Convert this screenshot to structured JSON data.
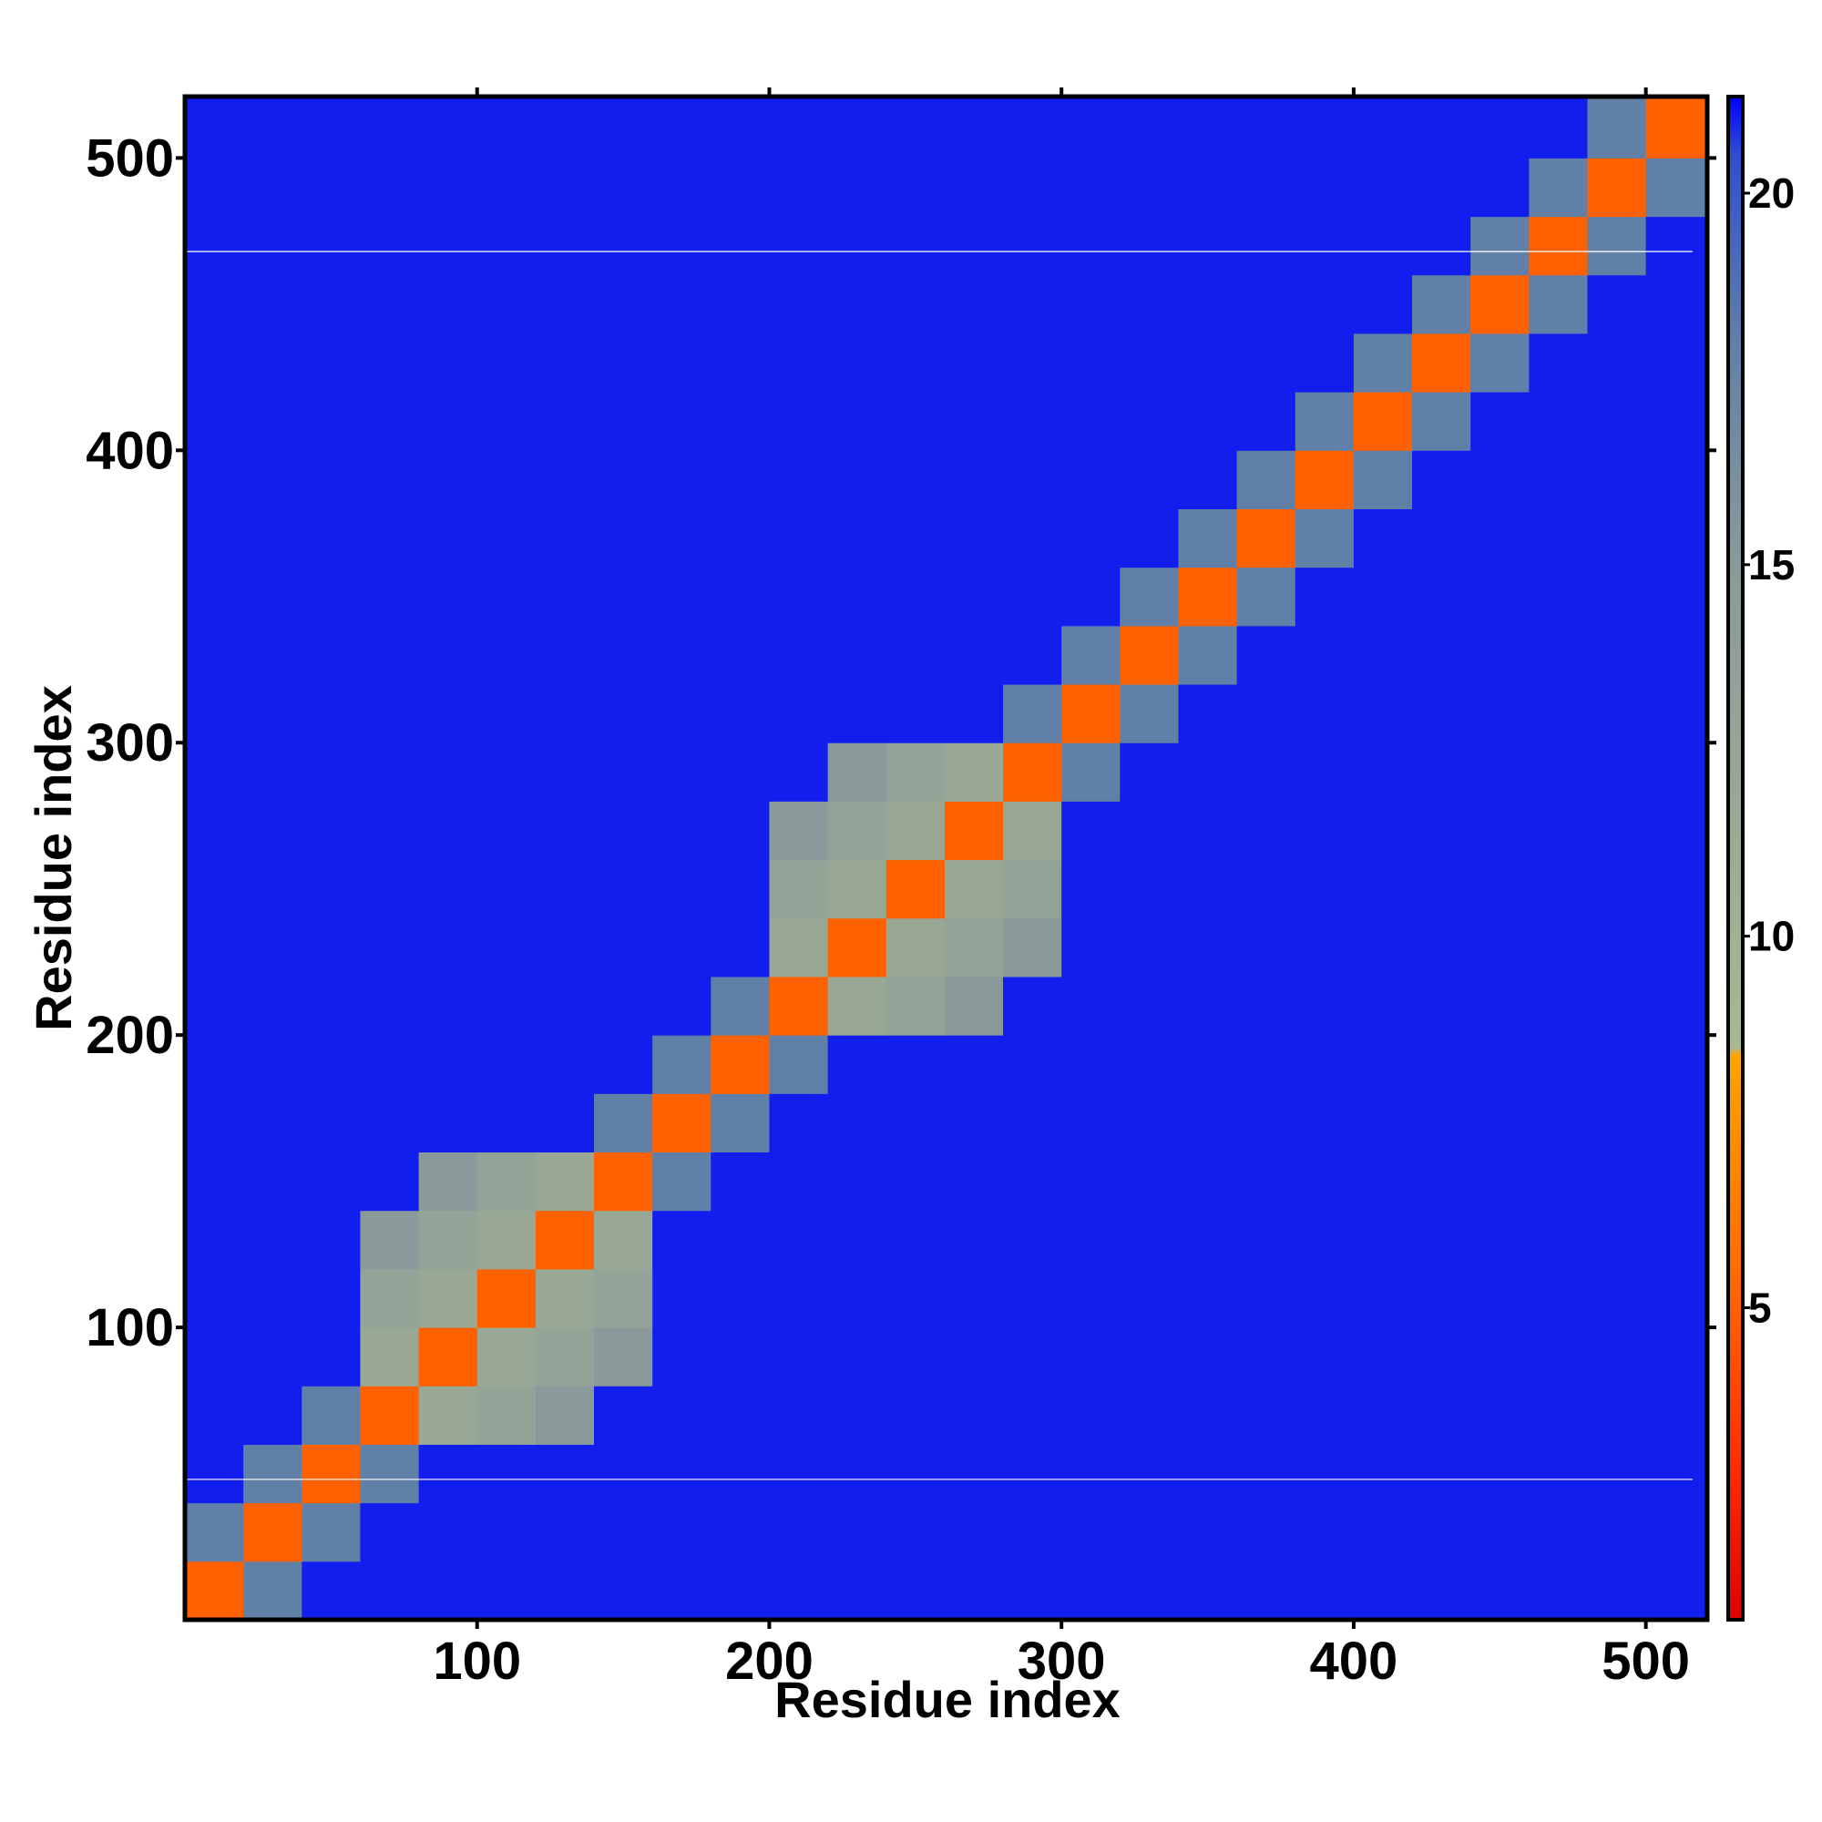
{
  "chart_data": {
    "type": "heatmap",
    "x_label": "Residue index",
    "y_label": "Residue index",
    "xlim": [
      0,
      521
    ],
    "ylim": [
      0,
      521
    ],
    "xticks": [
      100,
      200,
      300,
      400,
      500
    ],
    "yticks": [
      100,
      200,
      300,
      400,
      500
    ],
    "bins": [
      0,
      20,
      40,
      60,
      80,
      100,
      120,
      140,
      160,
      180,
      200,
      220,
      240,
      260,
      280,
      300,
      320,
      340,
      360,
      380,
      400,
      420,
      440,
      460,
      480,
      500,
      521
    ],
    "z": [
      [
        5,
        18,
        21,
        21,
        21,
        21,
        21,
        21,
        21,
        21,
        21,
        21,
        21,
        21,
        21,
        21,
        21,
        21,
        21,
        21,
        21,
        21,
        21,
        21,
        21,
        21
      ],
      [
        18,
        5,
        18,
        21,
        21,
        21,
        21,
        21,
        21,
        21,
        21,
        21,
        21,
        21,
        21,
        21,
        21,
        21,
        21,
        21,
        21,
        21,
        21,
        21,
        21,
        21
      ],
      [
        21,
        18,
        5,
        18,
        21,
        21,
        21,
        21,
        21,
        21,
        21,
        21,
        21,
        21,
        21,
        21,
        21,
        21,
        21,
        21,
        21,
        21,
        21,
        21,
        21,
        21
      ],
      [
        21,
        21,
        18,
        5,
        12,
        13,
        15,
        21,
        21,
        21,
        21,
        21,
        21,
        21,
        21,
        21,
        21,
        21,
        21,
        21,
        21,
        21,
        21,
        21,
        21,
        21
      ],
      [
        21,
        21,
        21,
        12,
        5,
        12,
        13,
        15,
        21,
        21,
        21,
        21,
        21,
        21,
        21,
        21,
        21,
        21,
        21,
        21,
        21,
        21,
        21,
        21,
        21,
        21
      ],
      [
        21,
        21,
        21,
        13,
        12,
        5,
        12,
        13,
        21,
        21,
        21,
        21,
        21,
        21,
        21,
        21,
        21,
        21,
        21,
        21,
        21,
        21,
        21,
        21,
        21,
        21
      ],
      [
        21,
        21,
        21,
        15,
        13,
        12,
        5,
        12,
        21,
        21,
        21,
        21,
        21,
        21,
        21,
        21,
        21,
        21,
        21,
        21,
        21,
        21,
        21,
        21,
        21,
        21
      ],
      [
        21,
        21,
        21,
        21,
        15,
        13,
        12,
        5,
        18,
        21,
        21,
        21,
        21,
        21,
        21,
        21,
        21,
        21,
        21,
        21,
        21,
        21,
        21,
        21,
        21,
        21
      ],
      [
        21,
        21,
        21,
        21,
        21,
        21,
        21,
        18,
        5,
        18,
        21,
        21,
        21,
        21,
        21,
        21,
        21,
        21,
        21,
        21,
        21,
        21,
        21,
        21,
        21,
        21
      ],
      [
        21,
        21,
        21,
        21,
        21,
        21,
        21,
        21,
        18,
        5,
        18,
        21,
        21,
        21,
        21,
        21,
        21,
        21,
        21,
        21,
        21,
        21,
        21,
        21,
        21,
        21
      ],
      [
        21,
        21,
        21,
        21,
        21,
        21,
        21,
        21,
        21,
        18,
        5,
        12,
        13,
        15,
        21,
        21,
        21,
        21,
        21,
        21,
        21,
        21,
        21,
        21,
        21,
        21
      ],
      [
        21,
        21,
        21,
        21,
        21,
        21,
        21,
        21,
        21,
        21,
        12,
        5,
        12,
        13,
        15,
        21,
        21,
        21,
        21,
        21,
        21,
        21,
        21,
        21,
        21,
        21
      ],
      [
        21,
        21,
        21,
        21,
        21,
        21,
        21,
        21,
        21,
        21,
        13,
        12,
        5,
        12,
        13,
        21,
        21,
        21,
        21,
        21,
        21,
        21,
        21,
        21,
        21,
        21
      ],
      [
        21,
        21,
        21,
        21,
        21,
        21,
        21,
        21,
        21,
        21,
        15,
        13,
        12,
        5,
        12,
        21,
        21,
        21,
        21,
        21,
        21,
        21,
        21,
        21,
        21,
        21
      ],
      [
        21,
        21,
        21,
        21,
        21,
        21,
        21,
        21,
        21,
        21,
        21,
        15,
        13,
        12,
        5,
        18,
        21,
        21,
        21,
        21,
        21,
        21,
        21,
        21,
        21,
        21
      ],
      [
        21,
        21,
        21,
        21,
        21,
        21,
        21,
        21,
        21,
        21,
        21,
        21,
        21,
        21,
        18,
        5,
        18,
        21,
        21,
        21,
        21,
        21,
        21,
        21,
        21,
        21
      ],
      [
        21,
        21,
        21,
        21,
        21,
        21,
        21,
        21,
        21,
        21,
        21,
        21,
        21,
        21,
        21,
        18,
        5,
        18,
        21,
        21,
        21,
        21,
        21,
        21,
        21,
        21
      ],
      [
        21,
        21,
        21,
        21,
        21,
        21,
        21,
        21,
        21,
        21,
        21,
        21,
        21,
        21,
        21,
        21,
        18,
        5,
        18,
        21,
        21,
        21,
        21,
        21,
        21,
        21
      ],
      [
        21,
        21,
        21,
        21,
        21,
        21,
        21,
        21,
        21,
        21,
        21,
        21,
        21,
        21,
        21,
        21,
        21,
        18,
        5,
        18,
        21,
        21,
        21,
        21,
        21,
        21
      ],
      [
        21,
        21,
        21,
        21,
        21,
        21,
        21,
        21,
        21,
        21,
        21,
        21,
        21,
        21,
        21,
        21,
        21,
        21,
        18,
        5,
        18,
        21,
        21,
        21,
        21,
        21
      ],
      [
        21,
        21,
        21,
        21,
        21,
        21,
        21,
        21,
        21,
        21,
        21,
        21,
        21,
        21,
        21,
        21,
        21,
        21,
        21,
        18,
        5,
        18,
        21,
        21,
        21,
        21
      ],
      [
        21,
        21,
        21,
        21,
        21,
        21,
        21,
        21,
        21,
        21,
        21,
        21,
        21,
        21,
        21,
        21,
        21,
        21,
        21,
        21,
        18,
        5,
        18,
        21,
        21,
        21
      ],
      [
        21,
        21,
        21,
        21,
        21,
        21,
        21,
        21,
        21,
        21,
        21,
        21,
        21,
        21,
        21,
        21,
        21,
        21,
        21,
        21,
        21,
        18,
        5,
        18,
        21,
        21
      ],
      [
        21,
        21,
        21,
        21,
        21,
        21,
        21,
        21,
        21,
        21,
        21,
        21,
        21,
        21,
        21,
        21,
        21,
        21,
        21,
        21,
        21,
        21,
        18,
        5,
        18,
        21
      ],
      [
        21,
        21,
        21,
        21,
        21,
        21,
        21,
        21,
        21,
        21,
        21,
        21,
        21,
        21,
        21,
        21,
        21,
        21,
        21,
        21,
        21,
        21,
        21,
        18,
        5,
        18
      ],
      [
        21,
        21,
        21,
        21,
        21,
        21,
        21,
        21,
        21,
        21,
        21,
        21,
        21,
        21,
        21,
        21,
        21,
        21,
        21,
        21,
        21,
        21,
        21,
        21,
        18,
        5
      ]
    ],
    "zlim": [
      0.8,
      21.3
    ],
    "zticks": [
      5,
      10,
      15,
      20
    ],
    "colorscale": [
      [
        0.8,
        "#e00000"
      ],
      [
        3,
        "#ff3000"
      ],
      [
        5,
        "#ff6000"
      ],
      [
        8.4,
        "#ffa500"
      ],
      [
        8.5,
        "#a8b890"
      ],
      [
        15,
        "#8a9a9a"
      ],
      [
        18,
        "#6080a8"
      ],
      [
        20.5,
        "#3050d0"
      ],
      [
        21.3,
        "#0000ff"
      ]
    ],
    "hlines": [
      468,
      48
    ]
  }
}
